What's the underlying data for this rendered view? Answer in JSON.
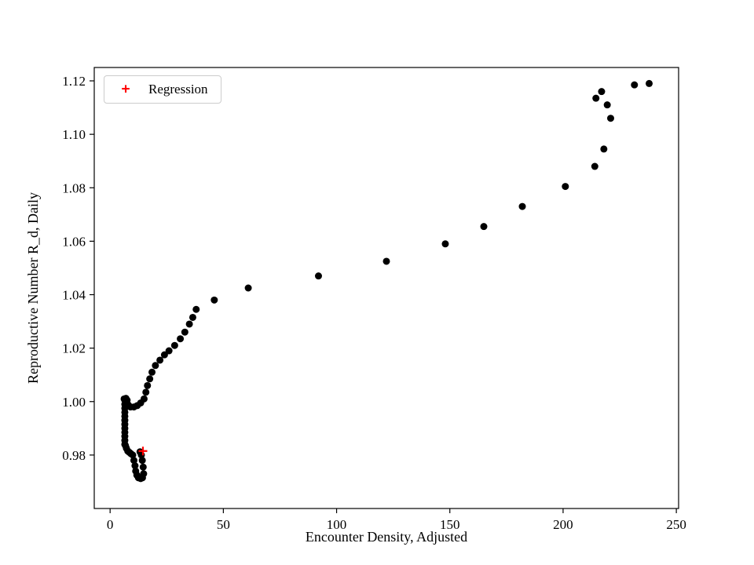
{
  "chart_data": {
    "type": "scatter",
    "title": "",
    "xlabel": "Encounter Density, Adjusted",
    "ylabel": "Reproductive Number R_d, Daily",
    "xlim": [
      -7,
      251
    ],
    "ylim": [
      0.96,
      1.125
    ],
    "grid": false,
    "xticks": {
      "values": [
        0,
        50,
        100,
        150,
        200,
        250
      ],
      "labels": [
        "0",
        "50",
        "100",
        "150",
        "200",
        "250"
      ]
    },
    "yticks": {
      "values": [
        0.98,
        1.0,
        1.02,
        1.04,
        1.06,
        1.08,
        1.1,
        1.12
      ],
      "labels": [
        "0.98",
        "1.00",
        "1.02",
        "1.04",
        "1.06",
        "1.08",
        "1.10",
        "1.12"
      ]
    },
    "legend": {
      "position": "upper left",
      "entries": [
        {
          "label": "Regression",
          "marker": "plus",
          "color": "#ff0000"
        }
      ]
    },
    "series": [
      {
        "name": "trajectory",
        "marker": "circle",
        "color": "#000000",
        "points": [
          [
            6.2,
            1.001
          ],
          [
            7.0,
            1.0012
          ],
          [
            7.5,
            1.0005
          ],
          [
            6.5,
            1.0005
          ],
          [
            7.2,
            0.9995
          ],
          [
            7.8,
            0.999
          ],
          [
            8.2,
            0.9985
          ],
          [
            6.5,
            0.999
          ],
          [
            6.5,
            0.9975
          ],
          [
            6.5,
            0.996
          ],
          [
            6.5,
            0.9945
          ],
          [
            6.5,
            0.993
          ],
          [
            6.5,
            0.9915
          ],
          [
            6.5,
            0.99
          ],
          [
            6.5,
            0.9885
          ],
          [
            6.5,
            0.987
          ],
          [
            6.5,
            0.9855
          ],
          [
            6.5,
            0.984
          ],
          [
            6.8,
            0.9835
          ],
          [
            7.2,
            0.9825
          ],
          [
            7.8,
            0.9815
          ],
          [
            8.5,
            0.981
          ],
          [
            9.2,
            0.9805
          ],
          [
            10.0,
            0.98
          ],
          [
            10.5,
            0.978
          ],
          [
            11.0,
            0.976
          ],
          [
            11.3,
            0.974
          ],
          [
            11.8,
            0.9725
          ],
          [
            12.5,
            0.9715
          ],
          [
            13.5,
            0.9712
          ],
          [
            14.3,
            0.9715
          ],
          [
            14.8,
            0.973
          ],
          [
            14.6,
            0.9755
          ],
          [
            14.2,
            0.978
          ],
          [
            13.8,
            0.98
          ],
          [
            13.2,
            0.9812
          ],
          [
            9.0,
            0.998
          ],
          [
            10.5,
            0.998
          ],
          [
            12.0,
            0.9985
          ],
          [
            13.5,
            0.9995
          ],
          [
            15.0,
            1.001
          ],
          [
            15.8,
            1.0035
          ],
          [
            16.5,
            1.006
          ],
          [
            17.5,
            1.0085
          ],
          [
            18.5,
            1.011
          ],
          [
            20.0,
            1.0135
          ],
          [
            22.0,
            1.0155
          ],
          [
            24.0,
            1.0175
          ],
          [
            26.0,
            1.019
          ],
          [
            28.5,
            1.021
          ],
          [
            31.0,
            1.0235
          ],
          [
            33.0,
            1.026
          ],
          [
            35.0,
            1.029
          ],
          [
            36.5,
            1.0315
          ],
          [
            38.0,
            1.0345
          ],
          [
            46.0,
            1.038
          ],
          [
            61.0,
            1.0425
          ],
          [
            92.0,
            1.047
          ],
          [
            122.0,
            1.0525
          ],
          [
            148.0,
            1.059
          ],
          [
            165.0,
            1.0655
          ],
          [
            182.0,
            1.073
          ],
          [
            201.0,
            1.0805
          ],
          [
            214.0,
            1.088
          ],
          [
            218.0,
            1.0945
          ],
          [
            221.0,
            1.106
          ],
          [
            219.5,
            1.111
          ],
          [
            214.5,
            1.1135
          ],
          [
            217.0,
            1.116
          ],
          [
            231.5,
            1.1185
          ],
          [
            238.0,
            1.119
          ]
        ]
      },
      {
        "name": "Regression",
        "marker": "plus",
        "color": "#ff0000",
        "points": [
          [
            14.5,
            0.9815
          ]
        ]
      }
    ]
  }
}
